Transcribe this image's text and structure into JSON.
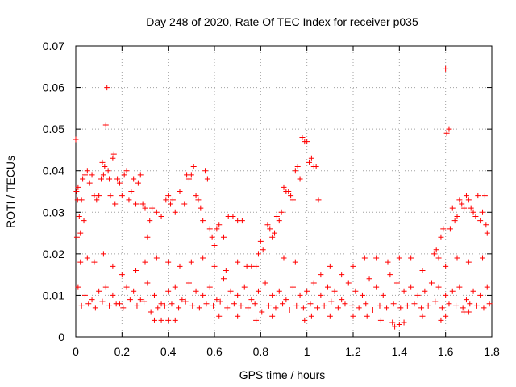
{
  "chart_data": {
    "type": "scatter",
    "title": "Day 248 of 2020, Rate Of TEC Index for receiver p035",
    "xlabel": "GPS time / hours",
    "ylabel": "ROTI / TECUs",
    "xlim": [
      0,
      1.8
    ],
    "ylim": [
      0,
      0.07
    ],
    "xticks": [
      0,
      0.2,
      0.4,
      0.6,
      0.8,
      1,
      1.2,
      1.4,
      1.6,
      1.8
    ],
    "xtick_labels": [
      "0",
      "0.2",
      "0.4",
      "0.6",
      "0.8",
      "1",
      "1.2",
      "1.4",
      "1.6",
      "1.8"
    ],
    "yticks": [
      0,
      0.01,
      0.02,
      0.03,
      0.04,
      0.05,
      0.06,
      0.07
    ],
    "ytick_labels": [
      "0",
      "0.01",
      "0.02",
      "0.03",
      "0.04",
      "0.05",
      "0.06",
      "0.07"
    ],
    "grid": true,
    "marker": "+",
    "color": "#ff0000",
    "series": [
      {
        "name": "ROTI",
        "points": [
          [
            0.0,
            0.0475
          ],
          [
            0.003,
            0.035
          ],
          [
            0.005,
            0.024
          ],
          [
            0.008,
            0.033
          ],
          [
            0.01,
            0.036
          ],
          [
            0.015,
            0.029
          ],
          [
            0.02,
            0.025
          ],
          [
            0.025,
            0.033
          ],
          [
            0.03,
            0.038
          ],
          [
            0.035,
            0.028
          ],
          [
            0.04,
            0.039
          ],
          [
            0.05,
            0.04
          ],
          [
            0.06,
            0.037
          ],
          [
            0.07,
            0.039
          ],
          [
            0.08,
            0.034
          ],
          [
            0.09,
            0.033
          ],
          [
            0.1,
            0.034
          ],
          [
            0.11,
            0.038
          ],
          [
            0.115,
            0.042
          ],
          [
            0.12,
            0.039
          ],
          [
            0.125,
            0.041
          ],
          [
            0.13,
            0.051
          ],
          [
            0.135,
            0.06
          ],
          [
            0.14,
            0.04
          ],
          [
            0.145,
            0.038
          ],
          [
            0.15,
            0.034
          ],
          [
            0.16,
            0.043
          ],
          [
            0.165,
            0.044
          ],
          [
            0.17,
            0.032
          ],
          [
            0.18,
            0.038
          ],
          [
            0.19,
            0.037
          ],
          [
            0.2,
            0.034
          ],
          [
            0.21,
            0.039
          ],
          [
            0.22,
            0.04
          ],
          [
            0.23,
            0.033
          ],
          [
            0.24,
            0.035
          ],
          [
            0.25,
            0.038
          ],
          [
            0.26,
            0.032
          ],
          [
            0.27,
            0.037
          ],
          [
            0.28,
            0.039
          ],
          [
            0.29,
            0.032
          ],
          [
            0.3,
            0.031
          ],
          [
            0.31,
            0.024
          ],
          [
            0.32,
            0.028
          ],
          [
            0.33,
            0.031
          ],
          [
            0.35,
            0.03
          ],
          [
            0.37,
            0.029
          ],
          [
            0.39,
            0.033
          ],
          [
            0.4,
            0.034
          ],
          [
            0.41,
            0.032
          ],
          [
            0.42,
            0.033
          ],
          [
            0.43,
            0.03
          ],
          [
            0.45,
            0.035
          ],
          [
            0.47,
            0.032
          ],
          [
            0.48,
            0.039
          ],
          [
            0.49,
            0.038
          ],
          [
            0.5,
            0.039
          ],
          [
            0.51,
            0.041
          ],
          [
            0.52,
            0.034
          ],
          [
            0.53,
            0.033
          ],
          [
            0.54,
            0.031
          ],
          [
            0.55,
            0.028
          ],
          [
            0.56,
            0.04
          ],
          [
            0.57,
            0.038
          ],
          [
            0.58,
            0.026
          ],
          [
            0.59,
            0.024
          ],
          [
            0.6,
            0.022
          ],
          [
            0.61,
            0.026
          ],
          [
            0.62,
            0.027
          ],
          [
            0.64,
            0.024
          ],
          [
            0.66,
            0.029
          ],
          [
            0.68,
            0.029
          ],
          [
            0.7,
            0.028
          ],
          [
            0.72,
            0.028
          ],
          [
            0.74,
            0.017
          ],
          [
            0.76,
            0.017
          ],
          [
            0.78,
            0.017
          ],
          [
            0.79,
            0.02
          ],
          [
            0.8,
            0.023
          ],
          [
            0.81,
            0.021
          ],
          [
            0.83,
            0.027
          ],
          [
            0.84,
            0.026
          ],
          [
            0.85,
            0.024
          ],
          [
            0.86,
            0.025
          ],
          [
            0.87,
            0.029
          ],
          [
            0.88,
            0.028
          ],
          [
            0.89,
            0.03
          ],
          [
            0.9,
            0.036
          ],
          [
            0.91,
            0.035
          ],
          [
            0.92,
            0.035
          ],
          [
            0.93,
            0.034
          ],
          [
            0.94,
            0.033
          ],
          [
            0.95,
            0.04
          ],
          [
            0.96,
            0.041
          ],
          [
            0.97,
            0.038
          ],
          [
            0.98,
            0.048
          ],
          [
            0.99,
            0.047
          ],
          [
            1.0,
            0.047
          ],
          [
            1.01,
            0.042
          ],
          [
            1.02,
            0.043
          ],
          [
            1.03,
            0.041
          ],
          [
            1.04,
            0.041
          ],
          [
            1.05,
            0.033
          ],
          [
            1.06,
            0.015
          ],
          [
            1.1,
            0.017
          ],
          [
            1.15,
            0.015
          ],
          [
            1.2,
            0.017
          ],
          [
            1.25,
            0.019
          ],
          [
            1.3,
            0.019
          ],
          [
            1.35,
            0.018
          ],
          [
            1.4,
            0.019
          ],
          [
            1.45,
            0.019
          ],
          [
            1.5,
            0.016
          ],
          [
            1.55,
            0.02
          ],
          [
            1.56,
            0.021
          ],
          [
            1.57,
            0.019
          ],
          [
            1.58,
            0.024
          ],
          [
            1.59,
            0.026
          ],
          [
            1.6,
            0.0645
          ],
          [
            1.605,
            0.049
          ],
          [
            1.615,
            0.05
          ],
          [
            1.62,
            0.026
          ],
          [
            1.63,
            0.031
          ],
          [
            1.64,
            0.028
          ],
          [
            1.65,
            0.029
          ],
          [
            1.66,
            0.033
          ],
          [
            1.67,
            0.032
          ],
          [
            1.68,
            0.031
          ],
          [
            1.69,
            0.034
          ],
          [
            1.7,
            0.033
          ],
          [
            1.71,
            0.031
          ],
          [
            1.72,
            0.03
          ],
          [
            1.73,
            0.029
          ],
          [
            1.74,
            0.034
          ],
          [
            1.75,
            0.028
          ],
          [
            1.76,
            0.03
          ],
          [
            1.77,
            0.034
          ],
          [
            1.775,
            0.027
          ],
          [
            1.78,
            0.025
          ],
          [
            0.02,
            0.018
          ],
          [
            0.05,
            0.019
          ],
          [
            0.08,
            0.018
          ],
          [
            0.12,
            0.02
          ],
          [
            0.16,
            0.017
          ],
          [
            0.2,
            0.015
          ],
          [
            0.26,
            0.016
          ],
          [
            0.3,
            0.018
          ],
          [
            0.35,
            0.019
          ],
          [
            0.4,
            0.018
          ],
          [
            0.45,
            0.017
          ],
          [
            0.5,
            0.018
          ],
          [
            0.55,
            0.019
          ],
          [
            0.6,
            0.017
          ],
          [
            0.65,
            0.016
          ],
          [
            0.7,
            0.018
          ],
          [
            0.9,
            0.019
          ],
          [
            0.95,
            0.018
          ],
          [
            1.6,
            0.017
          ],
          [
            1.65,
            0.019
          ],
          [
            1.7,
            0.018
          ],
          [
            1.76,
            0.019
          ],
          [
            0.01,
            0.012
          ],
          [
            0.04,
            0.01
          ],
          [
            0.07,
            0.009
          ],
          [
            0.1,
            0.011
          ],
          [
            0.13,
            0.012
          ],
          [
            0.16,
            0.01
          ],
          [
            0.19,
            0.008
          ],
          [
            0.22,
            0.012
          ],
          [
            0.25,
            0.011
          ],
          [
            0.28,
            0.009
          ],
          [
            0.31,
            0.013
          ],
          [
            0.34,
            0.01
          ],
          [
            0.37,
            0.008
          ],
          [
            0.4,
            0.011
          ],
          [
            0.43,
            0.012
          ],
          [
            0.46,
            0.009
          ],
          [
            0.49,
            0.013
          ],
          [
            0.52,
            0.011
          ],
          [
            0.55,
            0.01
          ],
          [
            0.58,
            0.012
          ],
          [
            0.61,
            0.009
          ],
          [
            0.64,
            0.014
          ],
          [
            0.67,
            0.011
          ],
          [
            0.7,
            0.01
          ],
          [
            0.73,
            0.012
          ],
          [
            0.76,
            0.009
          ],
          [
            0.79,
            0.011
          ],
          [
            0.82,
            0.013
          ],
          [
            0.85,
            0.01
          ],
          [
            0.88,
            0.011
          ],
          [
            0.91,
            0.009
          ],
          [
            0.94,
            0.012
          ],
          [
            0.97,
            0.01
          ],
          [
            1.0,
            0.011
          ],
          [
            1.03,
            0.013
          ],
          [
            1.06,
            0.01
          ],
          [
            1.09,
            0.012
          ],
          [
            1.12,
            0.011
          ],
          [
            1.15,
            0.009
          ],
          [
            1.18,
            0.013
          ],
          [
            1.21,
            0.011
          ],
          [
            1.24,
            0.01
          ],
          [
            1.27,
            0.014
          ],
          [
            1.3,
            0.012
          ],
          [
            1.33,
            0.01
          ],
          [
            1.36,
            0.015
          ],
          [
            1.39,
            0.013
          ],
          [
            1.42,
            0.011
          ],
          [
            1.45,
            0.012
          ],
          [
            1.48,
            0.01
          ],
          [
            1.51,
            0.011
          ],
          [
            1.54,
            0.013
          ],
          [
            1.57,
            0.012
          ],
          [
            1.6,
            0.01
          ],
          [
            1.63,
            0.011
          ],
          [
            1.66,
            0.012
          ],
          [
            1.69,
            0.009
          ],
          [
            1.72,
            0.011
          ],
          [
            1.75,
            0.01
          ],
          [
            1.78,
            0.012
          ],
          [
            0.025,
            0.0075
          ],
          [
            0.055,
            0.008
          ],
          [
            0.085,
            0.007
          ],
          [
            0.115,
            0.0085
          ],
          [
            0.145,
            0.0075
          ],
          [
            0.175,
            0.008
          ],
          [
            0.205,
            0.007
          ],
          [
            0.235,
            0.009
          ],
          [
            0.265,
            0.0075
          ],
          [
            0.295,
            0.0085
          ],
          [
            0.325,
            0.006
          ],
          [
            0.355,
            0.007
          ],
          [
            0.385,
            0.0075
          ],
          [
            0.415,
            0.008
          ],
          [
            0.445,
            0.007
          ],
          [
            0.475,
            0.0085
          ],
          [
            0.505,
            0.0075
          ],
          [
            0.535,
            0.007
          ],
          [
            0.565,
            0.008
          ],
          [
            0.595,
            0.0075
          ],
          [
            0.625,
            0.0085
          ],
          [
            0.655,
            0.007
          ],
          [
            0.685,
            0.008
          ],
          [
            0.715,
            0.0075
          ],
          [
            0.745,
            0.007
          ],
          [
            0.775,
            0.008
          ],
          [
            0.805,
            0.006
          ],
          [
            0.835,
            0.0075
          ],
          [
            0.865,
            0.007
          ],
          [
            0.895,
            0.008
          ],
          [
            0.925,
            0.0065
          ],
          [
            0.955,
            0.0075
          ],
          [
            0.985,
            0.007
          ],
          [
            1.015,
            0.008
          ],
          [
            1.045,
            0.007
          ],
          [
            1.075,
            0.0075
          ],
          [
            1.105,
            0.0085
          ],
          [
            1.135,
            0.007
          ],
          [
            1.165,
            0.008
          ],
          [
            1.195,
            0.0075
          ],
          [
            1.225,
            0.007
          ],
          [
            1.255,
            0.008
          ],
          [
            1.285,
            0.0065
          ],
          [
            1.315,
            0.0075
          ],
          [
            1.345,
            0.007
          ],
          [
            1.375,
            0.008
          ],
          [
            1.405,
            0.007
          ],
          [
            1.435,
            0.0075
          ],
          [
            1.465,
            0.008
          ],
          [
            1.495,
            0.007
          ],
          [
            1.525,
            0.0075
          ],
          [
            1.555,
            0.0085
          ],
          [
            1.585,
            0.007
          ],
          [
            1.615,
            0.008
          ],
          [
            1.645,
            0.0075
          ],
          [
            1.675,
            0.007
          ],
          [
            1.705,
            0.008
          ],
          [
            1.735,
            0.0075
          ],
          [
            1.765,
            0.007
          ],
          [
            1.79,
            0.008
          ],
          [
            0.34,
            0.004
          ],
          [
            0.37,
            0.004
          ],
          [
            0.4,
            0.004
          ],
          [
            0.43,
            0.004
          ],
          [
            0.62,
            0.005
          ],
          [
            0.7,
            0.005
          ],
          [
            0.78,
            0.004
          ],
          [
            0.85,
            0.005
          ],
          [
            0.99,
            0.004
          ],
          [
            1.02,
            0.005
          ],
          [
            1.1,
            0.005
          ],
          [
            1.2,
            0.005
          ],
          [
            1.26,
            0.005
          ],
          [
            1.32,
            0.004
          ],
          [
            1.37,
            0.0035
          ],
          [
            1.38,
            0.0025
          ],
          [
            1.4,
            0.003
          ],
          [
            1.42,
            0.0035
          ],
          [
            1.5,
            0.005
          ],
          [
            1.58,
            0.004
          ],
          [
            1.6,
            0.005
          ],
          [
            1.68,
            0.006
          ],
          [
            1.7,
            0.006
          ]
        ]
      }
    ]
  }
}
